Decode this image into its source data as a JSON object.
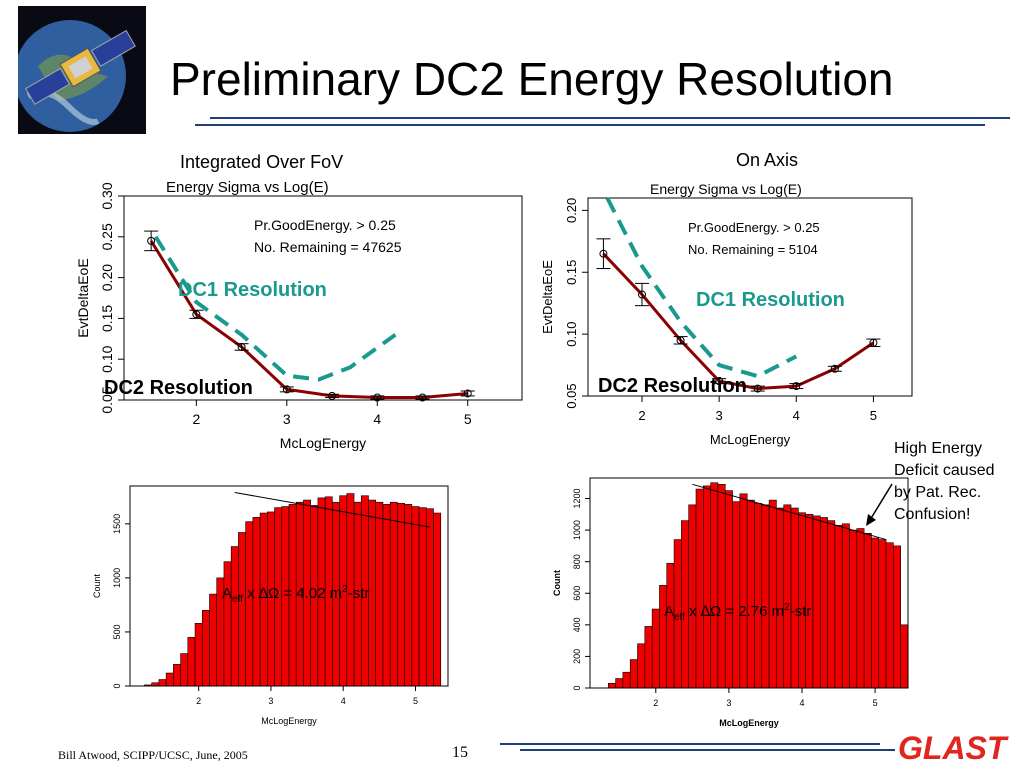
{
  "title": "Preliminary DC2 Energy Resolution",
  "captions": {
    "left": "Integrated Over FoV",
    "right": "On Axis"
  },
  "annotation": {
    "lines": [
      "High Energy",
      "Deficit caused",
      "by Pat. Rec.",
      "Confusion!"
    ]
  },
  "footer": {
    "author": "Bill Atwood,  SCIPP/UCSC, June, 2005",
    "page": "15",
    "logo": "GLAST"
  },
  "colors": {
    "dc2_line": "#8b0000",
    "dc1_dashed": "#1a9a8e",
    "histogram_fill": "#ee0000",
    "label_teal": "#1a9a8e",
    "logo_red": "#e0261f"
  },
  "chart_data": [
    {
      "type": "line",
      "title": "Energy Sigma vs Log(E)",
      "xlabel": "McLogEnergy",
      "ylabel": "EvtDeltaEoE",
      "xlim": [
        1.2,
        5.6
      ],
      "ylim": [
        0.05,
        0.3
      ],
      "xticks": [
        "2",
        "3",
        "4",
        "5"
      ],
      "yticks": [
        "0.05",
        "0.10",
        "0.15",
        "0.20",
        "0.25",
        "0.30"
      ],
      "info_lines": [
        "Pr.GoodEnergy.  >  0.25",
        "No. Remaining =  47625"
      ],
      "series": [
        {
          "name": "DC2 Resolution",
          "style": "solid-points",
          "x": [
            1.5,
            2.0,
            2.5,
            3.0,
            3.5,
            4.0,
            4.5,
            5.0
          ],
          "y": [
            0.245,
            0.155,
            0.115,
            0.063,
            0.055,
            0.053,
            0.053,
            0.058
          ],
          "err": [
            0.012,
            0.005,
            0.004,
            0.003,
            0.002,
            0.002,
            0.002,
            0.003
          ]
        },
        {
          "name": "DC1 Resolution",
          "style": "dashed",
          "x": [
            1.55,
            2.0,
            2.5,
            3.0,
            3.35,
            3.7,
            4.2
          ],
          "y": [
            0.25,
            0.17,
            0.13,
            0.08,
            0.075,
            0.09,
            0.13
          ]
        }
      ]
    },
    {
      "type": "line",
      "title": "Energy Sigma vs Log(E)",
      "xlabel": "McLogEnergy",
      "ylabel": "EvtDeltaEoE",
      "xlim": [
        1.3,
        5.5
      ],
      "ylim": [
        0.05,
        0.21
      ],
      "xticks": [
        "2",
        "3",
        "4",
        "5"
      ],
      "yticks": [
        "0.05",
        "0.10",
        "0.15",
        "0.20"
      ],
      "info_lines": [
        "Pr.GoodEnergy.  >  0.25",
        "No. Remaining =  5104"
      ],
      "series": [
        {
          "name": "DC2 Resolution",
          "style": "solid-points",
          "x": [
            1.5,
            2.0,
            2.5,
            3.0,
            3.5,
            4.0,
            4.5,
            5.0
          ],
          "y": [
            0.165,
            0.132,
            0.095,
            0.062,
            0.056,
            0.058,
            0.072,
            0.093
          ],
          "err": [
            0.012,
            0.009,
            0.003,
            0.002,
            0.002,
            0.002,
            0.002,
            0.003
          ]
        },
        {
          "name": "DC1 Resolution",
          "style": "dashed",
          "x": [
            1.55,
            2.0,
            2.5,
            3.0,
            3.5,
            4.0
          ],
          "y": [
            0.21,
            0.155,
            0.11,
            0.075,
            0.066,
            0.082
          ]
        }
      ]
    },
    {
      "type": "bar",
      "xlabel": "McLogEnergy",
      "ylabel": "Count",
      "xlim": [
        1.05,
        5.45
      ],
      "ylim": [
        0,
        1850
      ],
      "xticks": [
        "2",
        "3",
        "4",
        "5"
      ],
      "yticks": [
        "0",
        "500",
        "1000",
        "1500"
      ],
      "annotation": {
        "prefix": "A",
        "sub": "eff",
        "mid": " x ",
        "symbol": "∆Ω",
        "eq": " = 4.02 m",
        "sup": "2",
        "suffix": "-str"
      },
      "bin_start": 1.25,
      "bin_width": 0.1,
      "values": [
        10,
        30,
        60,
        120,
        200,
        300,
        450,
        580,
        700,
        850,
        1000,
        1150,
        1290,
        1420,
        1520,
        1560,
        1600,
        1610,
        1650,
        1660,
        1680,
        1700,
        1720,
        1670,
        1740,
        1750,
        1700,
        1760,
        1780,
        1700,
        1760,
        1720,
        1700,
        1680,
        1700,
        1690,
        1680,
        1660,
        1650,
        1640,
        1600
      ],
      "trend": {
        "x": [
          2.5,
          5.2
        ],
        "y": [
          1790,
          1470
        ]
      }
    },
    {
      "type": "bar",
      "xlabel": "McLogEnergy",
      "ylabel": "Count",
      "xlim": [
        1.1,
        5.45
      ],
      "ylim": [
        0,
        1330
      ],
      "xticks": [
        "2",
        "3",
        "4",
        "5"
      ],
      "yticks": [
        "0",
        "200",
        "400",
        "600",
        "800",
        "1000",
        "1200"
      ],
      "annotation": {
        "prefix": "A",
        "sub": "eff",
        "mid": " x ",
        "symbol": "∆Ω",
        "eq": " = 2.76 m",
        "sup": "2",
        "suffix": "-str"
      },
      "bin_start": 1.35,
      "bin_width": 0.1,
      "values": [
        30,
        60,
        100,
        180,
        280,
        390,
        500,
        650,
        790,
        940,
        1060,
        1160,
        1260,
        1280,
        1300,
        1290,
        1250,
        1180,
        1230,
        1190,
        1170,
        1160,
        1190,
        1140,
        1160,
        1140,
        1110,
        1100,
        1090,
        1080,
        1060,
        1030,
        1040,
        1000,
        1010,
        980,
        950,
        940,
        920,
        900,
        400
      ],
      "trend": {
        "x": [
          2.5,
          5.15
        ],
        "y": [
          1290,
          940
        ]
      }
    }
  ]
}
